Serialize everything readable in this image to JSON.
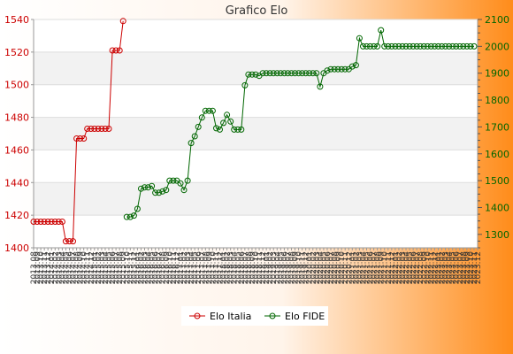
{
  "chart_data": {
    "type": "line",
    "title": "Grafico Elo",
    "colors": {
      "background_left": "#ffffff",
      "background_right": "#ff8c1a",
      "plot_band": "#f2f2f2",
      "elo_italia": "#cc0000",
      "elo_fide": "#006600"
    },
    "left_axis": {
      "ylim": [
        1400,
        1540
      ],
      "ticks": [
        1400,
        1420,
        1440,
        1460,
        1480,
        1500,
        1520,
        1540
      ]
    },
    "right_axis": {
      "ylim": [
        1250,
        2100
      ],
      "ticks": [
        1300,
        1400,
        1500,
        1600,
        1700,
        1800,
        1900,
        2000,
        2100
      ]
    },
    "x_tick_labels": [
      "2013.08",
      "2013.09",
      "2013.10",
      "2013.11",
      "2013.12",
      "2014.01",
      "2014.02",
      "2014.03",
      "2014.04",
      "2014.05",
      "2014.06",
      "2014.07",
      "2014.08",
      "2014.09",
      "2014.10",
      "2014.11",
      "2014.12",
      "2015.01",
      "2015.02",
      "2015.03",
      "2015.04",
      "2015.05",
      "2015.06",
      "2015.07",
      "2015.08",
      "2015.09",
      "2015.10",
      "2015.11",
      "2015.12",
      "2016.01",
      "2016.02",
      "2016.03",
      "2016.04",
      "2016.05",
      "2016.06",
      "2016.07",
      "2016.08",
      "2016.09",
      "2016.10",
      "2016.11",
      "2016.12",
      "2017.01",
      "2017.02",
      "2017.03",
      "2017.04",
      "2017.05",
      "2017.06",
      "2017.07",
      "2017.08",
      "2017.09",
      "2017.10",
      "2017.11",
      "2017.12",
      "2018.01",
      "2018.02",
      "2018.03",
      "2018.04",
      "2018.05",
      "2018.06",
      "2018.07",
      "2018.08",
      "2018.09",
      "2018.10",
      "2018.11",
      "2018.12",
      "2019.01",
      "2019.02",
      "2019.03",
      "2019.04",
      "2019.05",
      "2019.06",
      "2019.07",
      "2019.08",
      "2019.09",
      "2019.10",
      "2019.11",
      "2019.12",
      "2020.01",
      "2020.02",
      "2020.03",
      "2020.04",
      "2020.05",
      "2020.06",
      "2020.07",
      "2020.08",
      "2020.09",
      "2020.10",
      "2020.11",
      "2020.12",
      "2021.01",
      "2021.02",
      "2021.03",
      "2021.04",
      "2021.05",
      "2021.06",
      "2021.07",
      "2021.08",
      "2021.09",
      "2021.10",
      "2021.11",
      "2021.12",
      "2022.01",
      "2022.02",
      "2022.03",
      "2022.04",
      "2022.05",
      "2022.06",
      "2022.07",
      "2022.08",
      "2022.09",
      "2022.10",
      "2022.11",
      "2022.12",
      "2023.01",
      "2023.02",
      "2023.03",
      "2023.04",
      "2023.05",
      "2023.06",
      "2023.07",
      "2023.08",
      "2023.09",
      "2023.10",
      "2023.11",
      "2023.12"
    ],
    "series": [
      {
        "name": "Elo Italia",
        "axis": "left",
        "start_index": 0,
        "values": [
          1416,
          1416,
          1416,
          1416,
          1416,
          1416,
          1416,
          1416,
          1416,
          1404,
          1404,
          1404,
          1467,
          1467,
          1467,
          1473,
          1473,
          1473,
          1473,
          1473,
          1473,
          1473,
          1521,
          1521,
          1521,
          1539
        ]
      },
      {
        "name": "Elo FIDE",
        "axis": "right",
        "start_index": 26,
        "values": [
          1365,
          1365,
          1370,
          1395,
          1470,
          1475,
          1475,
          1480,
          1455,
          1455,
          1460,
          1465,
          1500,
          1500,
          1500,
          1490,
          1465,
          1500,
          1640,
          1665,
          1700,
          1735,
          1760,
          1760,
          1760,
          1695,
          1690,
          1715,
          1745,
          1720,
          1690,
          1690,
          1690,
          1855,
          1895,
          1895,
          1895,
          1890,
          1900,
          1900,
          1900,
          1900,
          1900,
          1900,
          1900,
          1900,
          1900,
          1900,
          1900,
          1900,
          1900,
          1900,
          1900,
          1900,
          1850,
          1900,
          1910,
          1915,
          1915,
          1915,
          1915,
          1915,
          1915,
          1925,
          1930,
          2030,
          2000,
          2000,
          2000,
          2000,
          2000,
          2060,
          2000,
          2000,
          2000,
          2000,
          2000,
          2000,
          2000,
          2000,
          2000,
          2000,
          2000,
          2000,
          2000,
          2000,
          2000,
          2000,
          2000,
          2000,
          2000,
          2000,
          2000,
          2000,
          2000,
          2000,
          2000,
          2000
        ]
      }
    ],
    "legend": {
      "position": "bottom-center",
      "entries": [
        "Elo Italia",
        "Elo FIDE"
      ]
    },
    "grid": true
  }
}
